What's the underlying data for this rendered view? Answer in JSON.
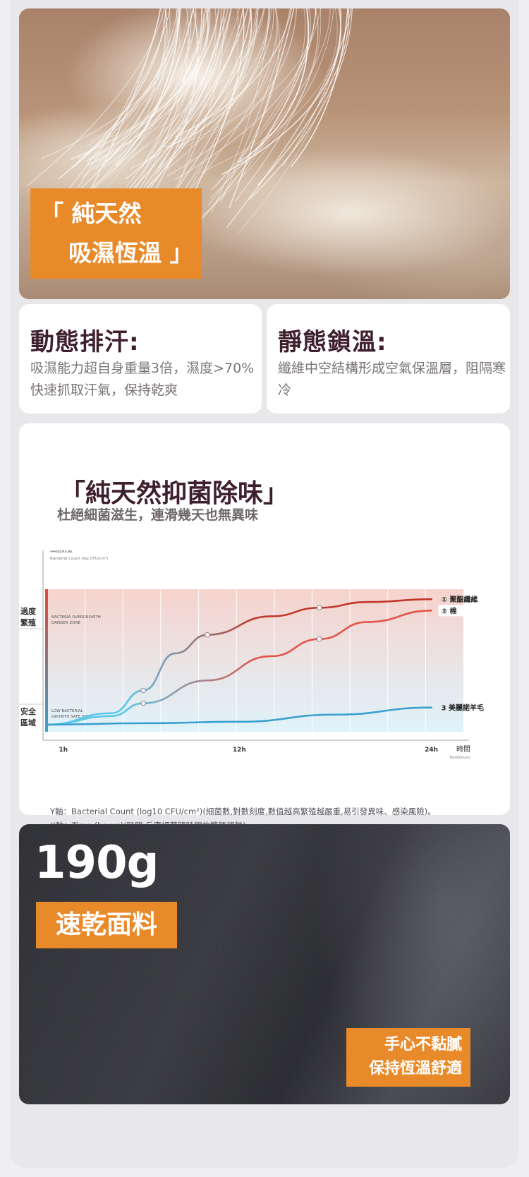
{
  "hero": {
    "line1": "「 純天然",
    "line2": "吸濕恆溫 」"
  },
  "features": [
    {
      "title": "動態排汗:",
      "desc": "吸濕能力超自身重量3倍，濕度>70% 快速抓取汗氣，保持乾爽"
    },
    {
      "title": "靜態鎖溫:",
      "desc": "纖維中空結構形成空氣保溫層，阻隔寒冷"
    }
  ],
  "antibacterial": {
    "title": "「純天然抑菌除味」",
    "subtitle": "杜絕細菌滋生，連滑幾天也無異味"
  },
  "chart_data": {
    "type": "line",
    "ylabel": "細菌數量",
    "ylabel_en": "Bacterial Count (log CFU/cm²)",
    "xlabel": "時間",
    "xlabel_en": "Time(hours)",
    "x_ticks": [
      "1h",
      "12h",
      "24h"
    ],
    "xlim": [
      0,
      26
    ],
    "ylim": [
      0,
      10
    ],
    "zones": [
      {
        "side_label": "過度\n繁殖",
        "label": "BACTERIA OVERGROWTH",
        "label2": "DANGER ZONE",
        "color": "#f6d3cc"
      },
      {
        "side_label": "安全\n區域",
        "label": "LOW BACTERIAL",
        "label2": "GROWTH SAFE ZONE",
        "color": "#dff3fb"
      }
    ],
    "series": [
      {
        "name": "① 聚酯纖維",
        "color": "#c2362c",
        "x": [
          0,
          4,
          6,
          8,
          10,
          14,
          17,
          20,
          24
        ],
        "y": [
          0.5,
          1.3,
          2.9,
          5.5,
          6.8,
          8.1,
          8.7,
          9.1,
          9.3
        ],
        "markers": [
          6,
          10,
          17
        ]
      },
      {
        "name": "② 棉",
        "color": "#e2554a",
        "x": [
          0,
          4,
          6,
          10,
          14,
          17,
          20,
          24
        ],
        "y": [
          0.5,
          1.1,
          2.0,
          3.6,
          5.3,
          6.5,
          7.7,
          8.5
        ],
        "markers": [
          6,
          16
        ]
      },
      {
        "name": "3 美麗諾羊毛",
        "color": "#3ba0cf",
        "x": [
          0,
          6,
          12,
          18,
          24
        ],
        "y": [
          0.5,
          0.6,
          0.7,
          1.2,
          1.7
        ],
        "markers": []
      }
    ]
  },
  "notes": {
    "y_axis": "Y軸：Bacterial Count (log10 CFU/cm²)(細菌數,對數刻度,數值越高繁殖越嚴重,易引發異味、感染風險)。",
    "x_axis": "X軸：Time (hours)(時間,反應細菌隨時間的繁殖趨勢)"
  },
  "fabric": {
    "weight": "190g",
    "quick_dry": "速乾面料",
    "tagline_1": "手心不黏膩",
    "tagline_2": "保持恆溫舒適"
  }
}
